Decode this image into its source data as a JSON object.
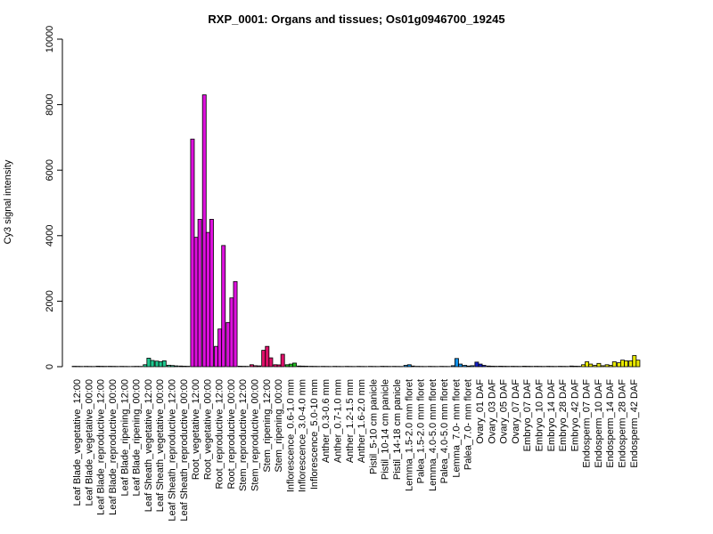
{
  "chart_data": {
    "type": "bar",
    "title": "RXP_0001: Organs and tissues; Os01g0946700_19245",
    "xlabel": "",
    "ylabel": "Cy3 signal intensity",
    "ylim": [
      0,
      10000
    ],
    "yticks": [
      0,
      2000,
      4000,
      6000,
      8000,
      10000
    ],
    "grid": false,
    "legend": "none",
    "bar_border": "#000000",
    "categories": [
      "Leaf Blade_vegetative_12:00",
      "Leaf Blade_vegetative_00:00",
      "Leaf Blade_reproductive_12:00",
      "Leaf Blade_reproductive_00:00",
      "Leaf Blade_ripening_12:00",
      "Leaf Blade_ripening_00:00",
      "Leaf Sheath_vegetative_12:00",
      "Leaf Sheath_vegetative_00:00",
      "Leaf Sheath_reproductive_12:00",
      "Leaf Sheath_reproductive_00:00",
      "Root_vegetative_12:00",
      "Root_vegetative_00:00",
      "Root_reproductive_12:00",
      "Root_reproductive_00:00",
      "Stem_reproductive_12:00",
      "Stem_reproductive_00:00",
      "Stem_ripening_12:00",
      "Stem_ripening_00:00",
      "Inflorescence_0.6-1.0 mm",
      "Inflorescence_3.0-4.0 mm",
      "Inflorescence_5.0-10 mm",
      "Anther_0.3-0.6 mm",
      "Anther_0.7-1.0 mm",
      "Anther_1.2-1.5 mm",
      "Anther_1.6-2.0 mm",
      "Pistil_5-10 cm panicle",
      "Pistil_10-14 cm panicle",
      "Pistil_14-18 cm panicle",
      "Lemma_1.5-2.0 mm floret",
      "Palea_1.5-2.0 mm floret",
      "Lemma_4.0-5.0 mm floret",
      "Palea_4.0-5.0 mm floret",
      "Lemma_7.0- mm floret",
      "Palea_7.0- mm floret",
      "Ovary_01 DAF",
      "Ovary_03 DAF",
      "Ovary_05 DAF",
      "Ovary_07 DAF",
      "Embryo_07 DAF",
      "Embryo_10 DAF",
      "Embryo_14 DAF",
      "Embryo_28 DAF",
      "Embryo_42 DAF",
      "Endosperm_07 DAF",
      "Endosperm_10 DAF",
      "Endosperm_14 DAF",
      "Endosperm_28 DAF",
      "Endosperm_42 DAF"
    ],
    "group_colors": [
      "#00FFFF",
      "#00FFFF",
      "#00FFFF",
      "#00FFFF",
      "#00FFFF",
      "#00FFFF",
      "#20C890",
      "#20C890",
      "#20C890",
      "#20C890",
      "#DD10DD",
      "#DD10DD",
      "#DD10DD",
      "#DD10DD",
      "#E0106A",
      "#E0106A",
      "#E0106A",
      "#E0106A",
      "#22BB22",
      "#22BB22",
      "#22BB22",
      "#20B060",
      "#20B060",
      "#20B060",
      "#20B060",
      "#1040E0",
      "#1040E0",
      "#1040E0",
      "#1090E8",
      "#1090E8",
      "#1090E8",
      "#1090E8",
      "#1090E8",
      "#1090E8",
      "#1420C8",
      "#1420C8",
      "#1420C8",
      "#1420C8",
      "#80C010",
      "#80C010",
      "#80C010",
      "#80C010",
      "#80C010",
      "#E8E800",
      "#E8E800",
      "#E8E800",
      "#E8E800",
      "#E8E800"
    ],
    "series": [
      {
        "values": [
          12,
          10,
          15,
          12,
          10,
          8,
          60,
          170,
          45,
          20,
          6950,
          8300,
          620,
          1350,
          15,
          60,
          500,
          60,
          60,
          20,
          12,
          10,
          10,
          10,
          10,
          10,
          12,
          10,
          40,
          10,
          10,
          10,
          30,
          40,
          140,
          20,
          15,
          12,
          15,
          12,
          12,
          12,
          20,
          60,
          40,
          60,
          120,
          180
        ]
      },
      {
        "values": [
          10,
          8,
          12,
          10,
          8,
          10,
          260,
          150,
          35,
          15,
          3950,
          4100,
          1150,
          2100,
          12,
          30,
          620,
          55,
          80,
          18,
          10,
          8,
          8,
          8,
          8,
          8,
          10,
          8,
          60,
          8,
          8,
          8,
          250,
          20,
          80,
          15,
          12,
          10,
          12,
          10,
          10,
          10,
          15,
          150,
          100,
          40,
          200,
          340
        ]
      },
      {
        "values": [
          8,
          6,
          10,
          8,
          6,
          8,
          190,
          180,
          25,
          12,
          4500,
          4500,
          3700,
          2600,
          10,
          25,
          270,
          380,
          110,
          15,
          8,
          6,
          6,
          6,
          6,
          6,
          8,
          6,
          20,
          6,
          6,
          6,
          80,
          30,
          40,
          12,
          10,
          8,
          10,
          8,
          8,
          8,
          12,
          80,
          30,
          150,
          180,
          200
        ]
      }
    ]
  }
}
